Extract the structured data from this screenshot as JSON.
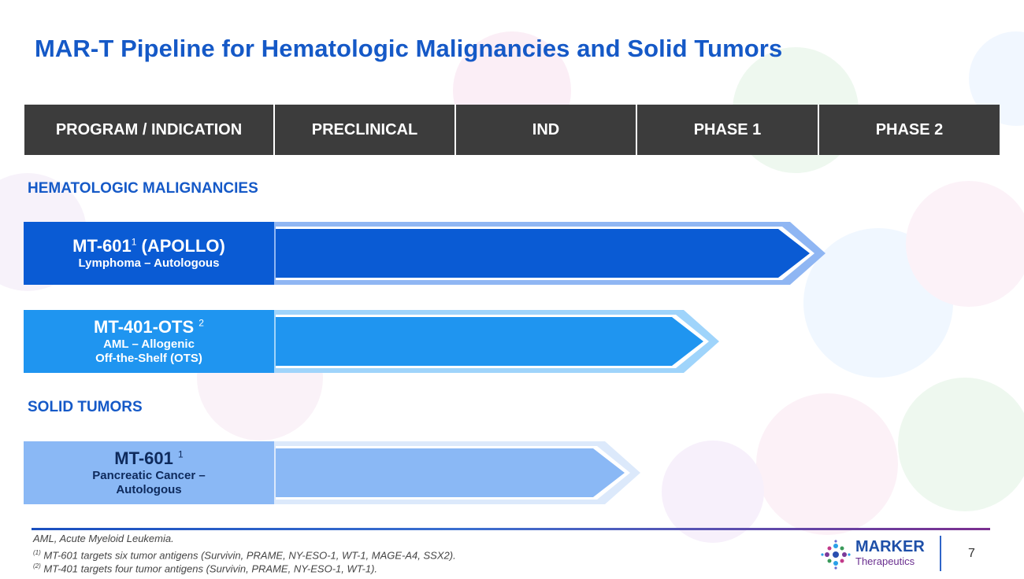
{
  "slide": {
    "title": "MAR-T Pipeline for Hematologic Malignancies and Solid Tumors",
    "page_number": "7"
  },
  "table_header": {
    "columns": [
      "PROGRAM / INDICATION",
      "PRECLINICAL",
      "IND",
      "PHASE 1",
      "PHASE 2"
    ]
  },
  "sections": {
    "hematologic": "HEMATOLOGIC MALIGNANCIES",
    "solid": "SOLID TUMORS"
  },
  "programs": [
    {
      "name": "MT-601",
      "sup": "1",
      "name_suffix": " (APOLLO)",
      "line1": "Lymphoma – Autologous",
      "line2": "",
      "stage": "PHASE 1",
      "color": "#0a5bd4"
    },
    {
      "name": "MT-401-OTS",
      "sup": "2",
      "name_suffix": "",
      "line1": "AML – Allogenic",
      "line2": "Off-the-Shelf (OTS)",
      "stage": "IND",
      "color": "#1f95f0"
    },
    {
      "name": "MT-601",
      "sup": "1",
      "name_suffix": "",
      "line1": "Pancreatic Cancer –",
      "line2": "Autologous",
      "stage": "IND",
      "color": "#8ab8f5"
    }
  ],
  "footnotes": {
    "abbrev": "AML, Acute Myeloid Leukemia.",
    "fn1_mark": "(1)",
    "fn1": "MT-601 targets six tumor antigens (Survivin, PRAME, NY-ESO-1, WT-1, MAGE-A4, SSX2).",
    "fn2_mark": "(2)",
    "fn2": "MT-401 targets four tumor antigens (Survivin, PRAME, NY-ESO-1, WT-1)."
  },
  "logo": {
    "name": "MARKER",
    "sub": "Therapeutics"
  },
  "colors": {
    "title": "#1559c7",
    "header_bg": "#3c3c3c"
  }
}
